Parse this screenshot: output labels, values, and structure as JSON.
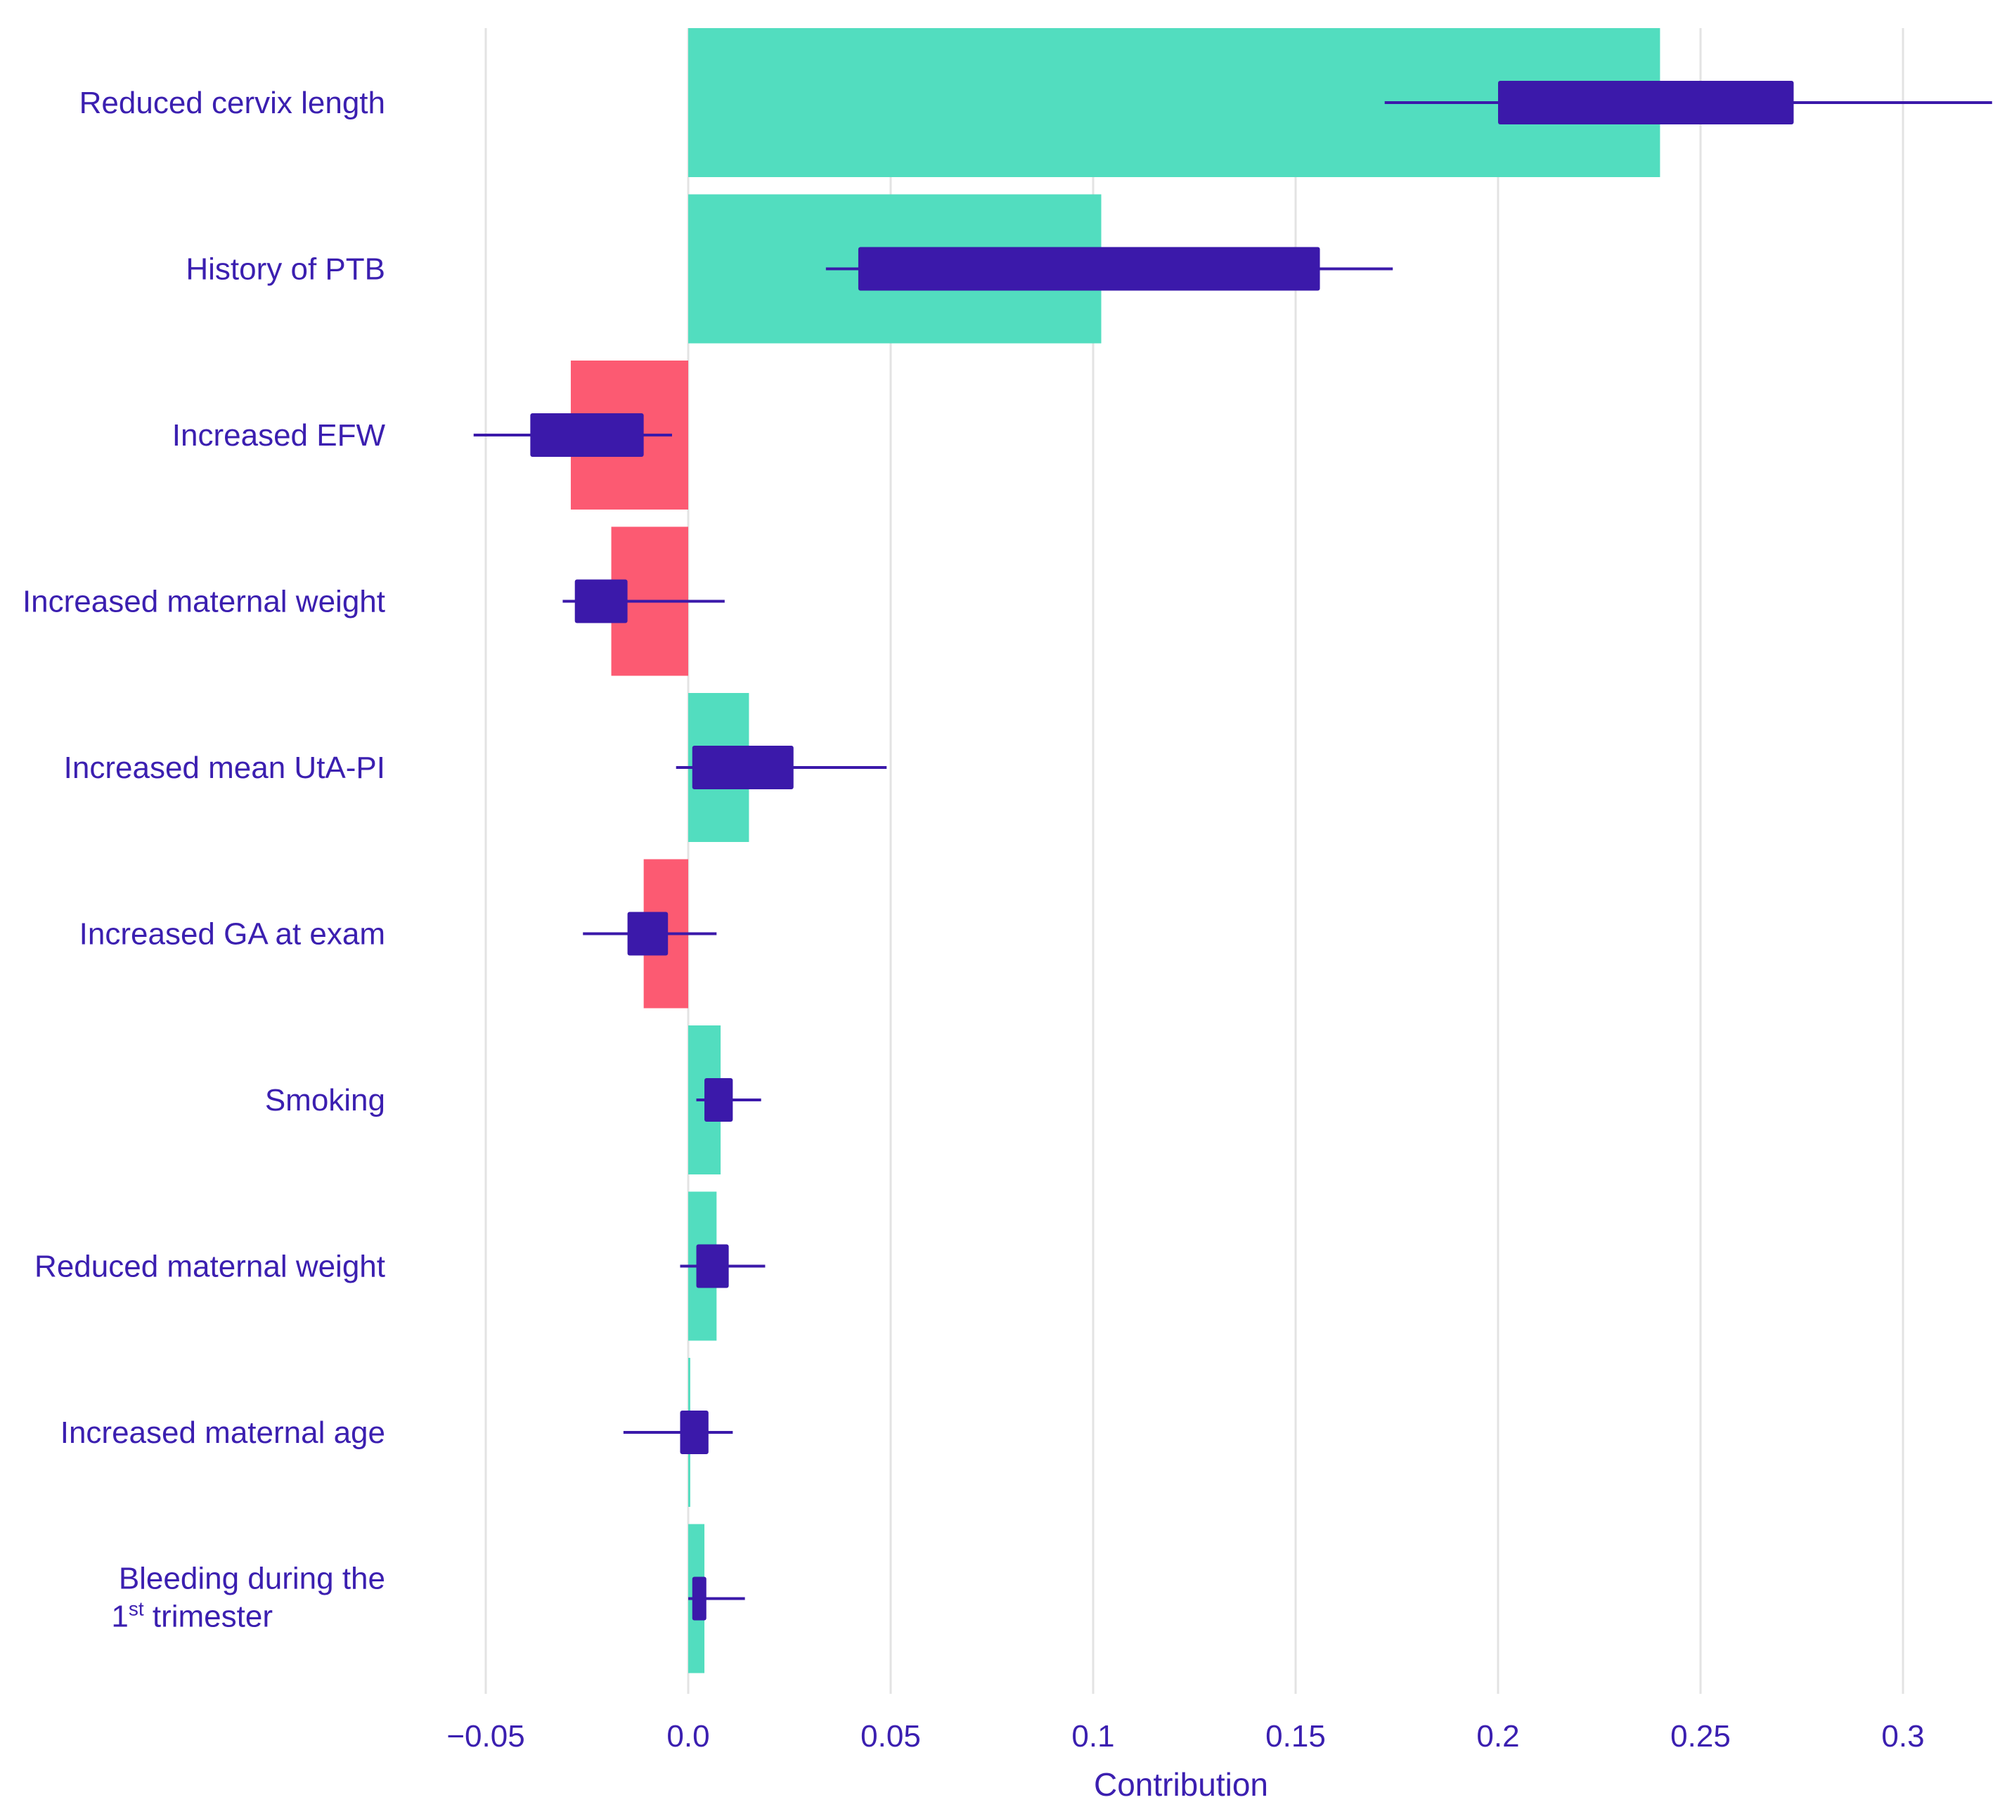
{
  "chart_data": {
    "type": "bar",
    "title": "",
    "xlabel": "Contribution",
    "ylabel": "",
    "xlim": [
      -0.062,
      0.321
    ],
    "x_ticks": [
      {
        "value": -0.05,
        "label": "−0.05"
      },
      {
        "value": 0.0,
        "label": "0.0"
      },
      {
        "value": 0.05,
        "label": "0.05"
      },
      {
        "value": 0.1,
        "label": "0.1"
      },
      {
        "value": 0.15,
        "label": "0.15"
      },
      {
        "value": 0.2,
        "label": "0.2"
      },
      {
        "value": 0.25,
        "label": "0.25"
      },
      {
        "value": 0.3,
        "label": "0.3"
      }
    ],
    "grid": "vertical",
    "colors": {
      "positive_bar": "#52ddbf",
      "negative_bar": "#fc5a72",
      "box": "#3b19aa",
      "whisker": "#3b19aa",
      "text": "#3b1fb0",
      "grid": "#e3e3e3"
    },
    "categories": [
      {
        "label_lines": [
          "Reduced cervix length"
        ],
        "value": 0.24,
        "box": [
          0.2,
          0.273
        ],
        "whisker": [
          0.172,
          0.322
        ]
      },
      {
        "label_lines": [
          "History of PTB"
        ],
        "value": 0.102,
        "box": [
          0.042,
          0.156
        ],
        "whisker": [
          0.034,
          0.174
        ]
      },
      {
        "label_lines": [
          "Increased EFW"
        ],
        "value": -0.029,
        "box": [
          -0.039,
          -0.011
        ],
        "whisker": [
          -0.053,
          -0.004
        ]
      },
      {
        "label_lines": [
          "Increased maternal weight"
        ],
        "value": -0.019,
        "box": [
          -0.028,
          -0.015
        ],
        "whisker": [
          -0.031,
          0.009
        ]
      },
      {
        "label_lines": [
          "Increased mean UtA-PI"
        ],
        "value": 0.015,
        "box": [
          0.001,
          0.026
        ],
        "whisker": [
          -0.003,
          0.049
        ]
      },
      {
        "label_lines": [
          "Increased GA at exam"
        ],
        "value": -0.011,
        "box": [
          -0.015,
          -0.005
        ],
        "whisker": [
          -0.026,
          0.007
        ]
      },
      {
        "label_lines": [
          "Smoking"
        ],
        "value": 0.008,
        "box": [
          0.004,
          0.011
        ],
        "whisker": [
          0.002,
          0.018
        ]
      },
      {
        "label_lines": [
          "Reduced maternal weight"
        ],
        "value": 0.007,
        "box": [
          0.002,
          0.01
        ],
        "whisker": [
          -0.002,
          0.019
        ]
      },
      {
        "label_lines": [
          "Increased maternal age"
        ],
        "value": 0.0005,
        "box": [
          -0.002,
          0.005
        ],
        "whisker": [
          -0.016,
          0.011
        ]
      },
      {
        "label_lines": [
          "Bleeding during the",
          "1",
          "st",
          " trimester"
        ],
        "value": 0.004,
        "box": [
          0.001,
          0.004
        ],
        "whisker": [
          0.0,
          0.014
        ]
      }
    ]
  }
}
